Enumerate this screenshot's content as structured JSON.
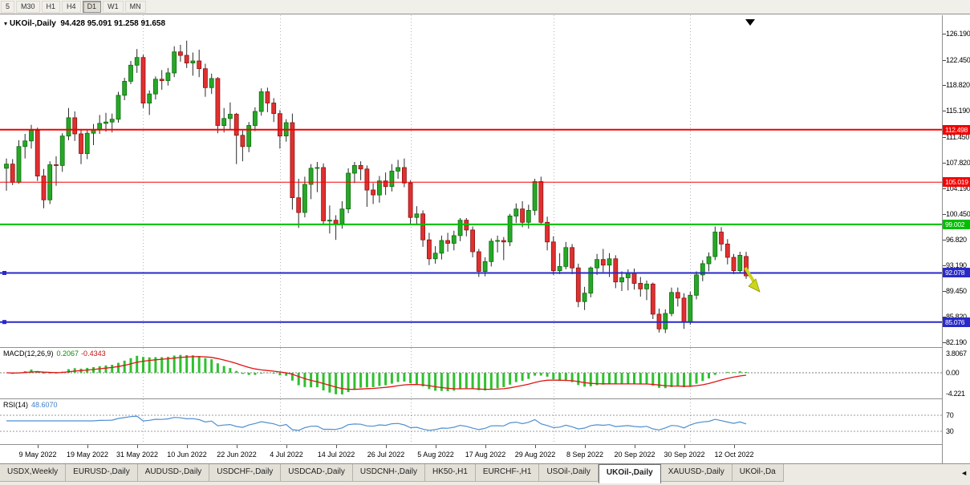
{
  "colors": {
    "bull": "#27a827",
    "bull_edge": "#0b6e0b",
    "bear": "#e03030",
    "bear_edge": "#8e1212",
    "wick": "#2b2b2b",
    "macd_hist": "#2fc12f",
    "macd_signal": "#e01414",
    "rsi_line": "#4f8fd0",
    "sell_arrow": "#ccd61a",
    "sell_arrow_edge": "#8a9207"
  },
  "icons": {
    "chart_menu_arrow": "▾",
    "tab_scroll_left": "◄",
    "chart_shift_marker": "▼"
  },
  "toolbar": {
    "timeframes": [
      {
        "label": "5",
        "active": false
      },
      {
        "label": "M30",
        "active": false
      },
      {
        "label": "H1",
        "active": false
      },
      {
        "label": "H4",
        "active": false
      },
      {
        "label": "D1",
        "active": true
      },
      {
        "label": "W1",
        "active": false
      },
      {
        "label": "MN",
        "active": false
      }
    ]
  },
  "chart_data": {
    "type": "candlestick",
    "symbol_timeframe": "UKOil-,Daily",
    "ohlc_text": "94.428 95.091 91.258 91.658",
    "price_axis_labels": [
      "126.190",
      "122.450",
      "118.820",
      "115.190",
      "111.450",
      "107.820",
      "104.190",
      "100.450",
      "96.820",
      "93.190",
      "89.450",
      "85.820",
      "82.190"
    ],
    "x_labels": [
      "9 May 2022",
      "19 May 2022",
      "31 May 2022",
      "10 Jun 2022",
      "22 Jun 2022",
      "4 Jul 2022",
      "14 Jul 2022",
      "26 Jul 2022",
      "5 Aug 2022",
      "17 Aug 2022",
      "29 Aug 2022",
      "8 Sep 2022",
      "20 Sep 2022",
      "30 Sep 2022",
      "12 Oct 2022"
    ],
    "x_label_indices": [
      5,
      13,
      21,
      29,
      37,
      45,
      53,
      61,
      69,
      77,
      85,
      93,
      101,
      109,
      117
    ],
    "month_separator_indices": [
      22,
      44,
      65,
      88,
      110
    ],
    "candles_ohlc": [
      [
        107.0,
        108.4,
        103.8,
        107.6
      ],
      [
        107.6,
        108.3,
        104.6,
        105.0
      ],
      [
        105.0,
        111.0,
        104.8,
        110.1
      ],
      [
        110.1,
        111.9,
        108.4,
        110.9
      ],
      [
        110.9,
        113.2,
        109.8,
        112.4
      ],
      [
        112.4,
        112.8,
        105.2,
        105.9
      ],
      [
        105.9,
        106.9,
        101.3,
        102.5
      ],
      [
        102.5,
        108.0,
        101.9,
        107.5
      ],
      [
        107.5,
        108.7,
        104.5,
        107.4
      ],
      [
        107.4,
        112.0,
        106.5,
        111.6
      ],
      [
        111.6,
        115.6,
        111.0,
        114.2
      ],
      [
        114.2,
        115.1,
        110.9,
        111.9
      ],
      [
        111.9,
        112.5,
        107.6,
        109.1
      ],
      [
        109.1,
        112.4,
        108.3,
        112.0
      ],
      [
        112.0,
        113.3,
        110.3,
        112.5
      ],
      [
        112.5,
        114.6,
        111.9,
        113.4
      ],
      [
        113.4,
        114.9,
        112.2,
        113.6
      ],
      [
        113.6,
        114.8,
        112.1,
        114.0
      ],
      [
        114.0,
        117.9,
        113.5,
        117.4
      ],
      [
        117.4,
        119.9,
        116.7,
        119.4
      ],
      [
        119.4,
        122.3,
        119.0,
        121.7
      ],
      [
        121.7,
        124.0,
        120.6,
        122.8
      ],
      [
        122.8,
        123.2,
        115.6,
        116.3
      ],
      [
        116.3,
        118.1,
        114.6,
        117.6
      ],
      [
        117.6,
        120.1,
        116.8,
        119.7
      ],
      [
        119.7,
        121.0,
        118.2,
        119.5
      ],
      [
        119.5,
        121.3,
        118.8,
        120.6
      ],
      [
        120.6,
        124.4,
        120.0,
        123.6
      ],
      [
        123.6,
        124.6,
        122.2,
        123.1
      ],
      [
        123.1,
        125.2,
        121.3,
        122.0
      ],
      [
        122.0,
        123.5,
        120.2,
        122.3
      ],
      [
        122.3,
        123.9,
        120.0,
        121.2
      ],
      [
        121.2,
        121.9,
        117.2,
        118.5
      ],
      [
        118.5,
        120.5,
        117.6,
        119.8
      ],
      [
        119.8,
        120.0,
        112.0,
        113.1
      ],
      [
        113.1,
        115.6,
        112.1,
        114.1
      ],
      [
        114.1,
        116.4,
        112.6,
        114.7
      ],
      [
        114.7,
        114.9,
        107.6,
        111.7
      ],
      [
        111.7,
        112.4,
        108.0,
        110.1
      ],
      [
        110.1,
        113.6,
        109.3,
        113.1
      ],
      [
        113.1,
        115.7,
        112.3,
        115.1
      ],
      [
        115.1,
        118.4,
        114.5,
        117.9
      ],
      [
        117.9,
        118.5,
        115.0,
        116.3
      ],
      [
        116.3,
        117.0,
        113.6,
        114.8
      ],
      [
        114.8,
        115.3,
        109.8,
        111.6
      ],
      [
        111.6,
        114.0,
        110.8,
        113.5
      ],
      [
        113.5,
        114.8,
        101.1,
        102.8
      ],
      [
        102.8,
        105.5,
        98.5,
        100.7
      ],
      [
        100.7,
        105.8,
        100.0,
        104.7
      ],
      [
        104.7,
        107.6,
        102.6,
        107.0
      ],
      [
        107.0,
        107.9,
        103.6,
        107.1
      ],
      [
        107.1,
        107.7,
        98.9,
        99.5
      ],
      [
        99.5,
        101.7,
        97.7,
        99.6
      ],
      [
        99.6,
        100.3,
        96.8,
        99.1
      ],
      [
        99.1,
        102.3,
        98.4,
        101.2
      ],
      [
        101.2,
        107.0,
        100.6,
        106.3
      ],
      [
        106.3,
        107.9,
        104.9,
        107.4
      ],
      [
        107.4,
        108.0,
        105.3,
        106.9
      ],
      [
        106.9,
        107.4,
        101.5,
        103.9
      ],
      [
        103.9,
        104.9,
        101.9,
        103.2
      ],
      [
        103.2,
        105.9,
        102.1,
        105.2
      ],
      [
        105.2,
        106.4,
        103.2,
        104.4
      ],
      [
        104.4,
        107.6,
        103.7,
        106.6
      ],
      [
        106.6,
        108.2,
        105.5,
        107.1
      ],
      [
        107.1,
        108.4,
        104.3,
        104.9
      ],
      [
        104.9,
        105.3,
        99.1,
        100.0
      ],
      [
        100.0,
        101.6,
        98.9,
        100.5
      ],
      [
        100.5,
        101.0,
        95.8,
        96.8
      ],
      [
        96.8,
        97.8,
        93.2,
        94.1
      ],
      [
        94.1,
        95.9,
        93.4,
        94.9
      ],
      [
        94.9,
        97.4,
        94.0,
        96.7
      ],
      [
        96.7,
        97.8,
        95.1,
        96.3
      ],
      [
        96.3,
        98.1,
        95.3,
        97.4
      ],
      [
        97.4,
        99.9,
        96.6,
        99.6
      ],
      [
        99.6,
        99.9,
        97.3,
        98.2
      ],
      [
        98.2,
        98.7,
        94.3,
        95.1
      ],
      [
        95.1,
        95.5,
        91.5,
        92.3
      ],
      [
        92.3,
        94.3,
        91.6,
        93.7
      ],
      [
        93.7,
        97.0,
        93.0,
        96.6
      ],
      [
        96.6,
        97.4,
        95.0,
        96.7
      ],
      [
        96.7,
        97.2,
        93.9,
        96.5
      ],
      [
        96.5,
        100.5,
        95.9,
        100.2
      ],
      [
        100.2,
        102.0,
        99.2,
        101.2
      ],
      [
        101.2,
        102.3,
        98.6,
        99.3
      ],
      [
        99.3,
        101.8,
        98.4,
        101.0
      ],
      [
        101.0,
        105.5,
        100.3,
        105.1
      ],
      [
        105.1,
        105.8,
        98.9,
        99.3
      ],
      [
        99.3,
        100.1,
        95.3,
        96.5
      ],
      [
        96.5,
        97.3,
        91.8,
        92.4
      ],
      [
        92.4,
        94.9,
        91.9,
        93.0
      ],
      [
        93.0,
        96.5,
        92.6,
        95.7
      ],
      [
        95.7,
        96.2,
        91.9,
        92.8
      ],
      [
        92.8,
        93.4,
        87.2,
        88.0
      ],
      [
        88.0,
        90.1,
        86.8,
        89.2
      ],
      [
        89.2,
        93.0,
        88.6,
        92.8
      ],
      [
        92.8,
        94.8,
        91.8,
        94.0
      ],
      [
        94.0,
        95.5,
        92.2,
        93.2
      ],
      [
        93.2,
        94.9,
        91.5,
        94.1
      ],
      [
        94.1,
        94.6,
        89.9,
        90.8
      ],
      [
        90.8,
        92.3,
        89.5,
        91.4
      ],
      [
        91.4,
        92.6,
        89.6,
        92.0
      ],
      [
        92.0,
        92.7,
        89.7,
        90.6
      ],
      [
        90.6,
        91.5,
        88.7,
        89.8
      ],
      [
        89.8,
        91.0,
        88.2,
        90.5
      ],
      [
        90.5,
        90.7,
        85.5,
        86.2
      ],
      [
        86.2,
        87.0,
        83.6,
        84.1
      ],
      [
        84.1,
        86.9,
        83.5,
        86.3
      ],
      [
        86.3,
        90.0,
        85.9,
        89.3
      ],
      [
        89.3,
        90.0,
        87.3,
        88.5
      ],
      [
        88.5,
        89.2,
        84.1,
        85.1
      ],
      [
        85.1,
        89.4,
        84.7,
        88.9
      ],
      [
        88.9,
        92.3,
        88.3,
        91.8
      ],
      [
        91.8,
        93.9,
        90.9,
        93.4
      ],
      [
        93.4,
        95.0,
        92.3,
        94.4
      ],
      [
        94.4,
        98.7,
        93.9,
        97.9
      ],
      [
        97.9,
        98.6,
        95.2,
        96.2
      ],
      [
        96.2,
        96.9,
        93.3,
        94.3
      ],
      [
        94.3,
        94.8,
        91.9,
        92.4
      ],
      [
        92.4,
        95.1,
        92.0,
        94.6
      ],
      [
        94.428,
        95.091,
        91.258,
        91.658
      ]
    ],
    "hlines": [
      {
        "value": 112.498,
        "label": "112.498",
        "color": "#f40000",
        "width": 2,
        "handle": false
      },
      {
        "value": 105.019,
        "label": "105.019",
        "color": "#f40000",
        "width": 1,
        "handle": false
      },
      {
        "value": 99.002,
        "label": "99.002",
        "color": "#00bf00",
        "width": 2,
        "handle": false
      },
      {
        "value": 92.078,
        "label": "92.078",
        "color": "#2929c8",
        "width": 2,
        "handle": true
      },
      {
        "value": 85.076,
        "label": "85.076",
        "color": "#2929c8",
        "width": 2,
        "handle": true
      }
    ],
    "indicators": {
      "macd": {
        "label": "MACD(12,26,9)",
        "value_main": "0.2067",
        "value_signal": "-0.4343",
        "axis_labels": [
          "3.8067",
          "0.00",
          "-4.221"
        ]
      },
      "rsi": {
        "label": "RSI(14)",
        "value": "48.6070",
        "levels": [
          70,
          30
        ]
      }
    },
    "objects": [
      {
        "type": "arrow-sell",
        "color": "#ccd61a",
        "near_index": 119,
        "near_price": 92
      }
    ]
  },
  "tabbar": {
    "tabs": [
      {
        "label": "USDX,Weekly",
        "active": false
      },
      {
        "label": "EURUSD-,Daily",
        "active": false
      },
      {
        "label": "AUDUSD-,Daily",
        "active": false
      },
      {
        "label": "USDCHF-,Daily",
        "active": false
      },
      {
        "label": "USDCAD-,Daily",
        "active": false
      },
      {
        "label": "USDCNH-,Daily",
        "active": false
      },
      {
        "label": "HK50-,H1",
        "active": false
      },
      {
        "label": "EURCHF-,H1",
        "active": false
      },
      {
        "label": "USOil-,Daily",
        "active": false
      },
      {
        "label": "UKOil-,Daily",
        "active": true
      },
      {
        "label": "XAUUSD-,Daily",
        "active": false
      },
      {
        "label": "UKOil-,Da",
        "active": false
      }
    ]
  }
}
